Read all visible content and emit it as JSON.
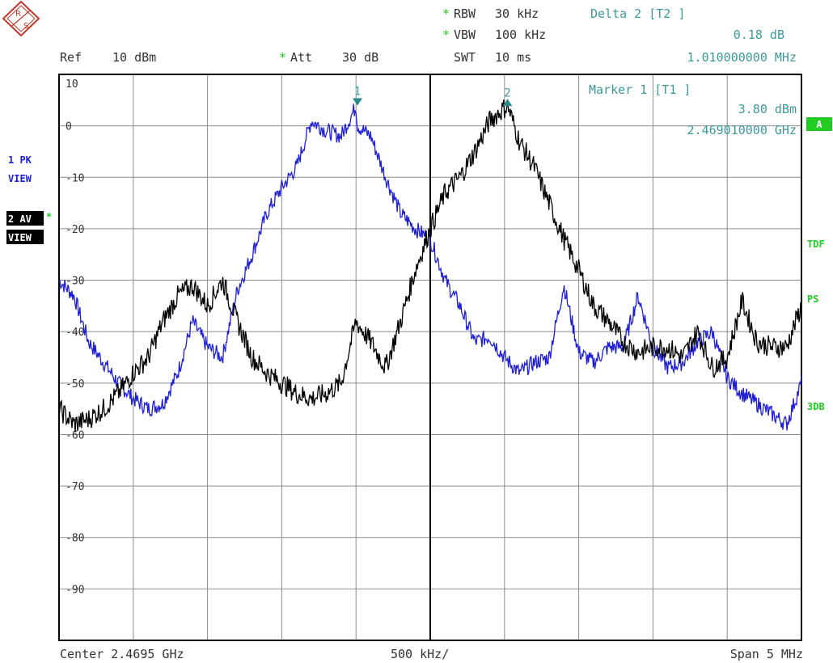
{
  "header": {
    "rbw": {
      "star": "*",
      "label": "RBW",
      "value": "30 kHz"
    },
    "vbw": {
      "star": "*",
      "label": "VBW",
      "value": "100 kHz"
    },
    "ref": {
      "label": "Ref",
      "value": "10 dBm"
    },
    "att": {
      "star": "*",
      "label": "Att",
      "value": "30 dB"
    },
    "swt": {
      "label": "SWT",
      "value": "10 ms"
    },
    "delta": {
      "title": "Delta 2 [T2 ]",
      "level": "0.18 dB",
      "freq": "1.010000000 MHz"
    },
    "marker": {
      "title": "Marker 1 [T1 ]",
      "level": "3.80 dBm",
      "freq": "2.469010000 GHz"
    }
  },
  "logo": {
    "text": "R&S"
  },
  "left_labels": {
    "trace1_line1": "1 PK",
    "trace1_line2": "VIEW",
    "trace2_line1": "2 AV",
    "trace2_star": "*",
    "trace2_line2": "VIEW"
  },
  "right_labels": {
    "a": "A",
    "tdf": "TDF",
    "ps": "PS",
    "db3": "3DB"
  },
  "footer": {
    "center": "Center 2.4695 GHz",
    "div": "500 kHz/",
    "span": "Span 5 MHz"
  },
  "colors": {
    "trace1": "#1f1fd6",
    "trace2": "#000000",
    "marker": "#2a8a8a",
    "status_green": "#22cc22",
    "grid": "#8c8c8c",
    "text": "#333333",
    "teal_text": "#3d9a9a"
  },
  "chart_data": {
    "type": "line",
    "title": "",
    "xlabel": "",
    "ylabel": "",
    "x_unit": "GHz",
    "x_center": 2.4695,
    "x_span_mhz": 5,
    "xlim": [
      2.467,
      2.472
    ],
    "ylim": [
      -100,
      10
    ],
    "ytick_labels": [
      "10",
      "0",
      "-10",
      "-20",
      "-30",
      "-40",
      "-50",
      "-60",
      "-70",
      "-80",
      "-90"
    ],
    "yticks": [
      10,
      0,
      -10,
      -20,
      -30,
      -40,
      -50,
      -60,
      -70,
      -80,
      -90
    ],
    "grid": true,
    "divider_x": 2.4695,
    "markers": [
      {
        "label": "1",
        "x": 2.46901,
        "y": 3.8,
        "trace": 1,
        "symbol": "down-triangle"
      },
      {
        "label": "2",
        "x": 2.47002,
        "y": 3.98,
        "trace": 2,
        "symbol": "up-triangle"
      }
    ],
    "series": [
      {
        "trace": 1,
        "x": [
          2.467,
          2.4671,
          2.4672,
          2.4673,
          2.4674,
          2.4675,
          2.4676,
          2.4677,
          2.4678,
          2.4679,
          2.468,
          2.4681,
          2.4682,
          2.4683,
          2.4684,
          2.4685,
          2.4686,
          2.4687,
          2.4688,
          2.4689,
          2.469,
          2.46901,
          2.4691,
          2.4692,
          2.4693,
          2.4694,
          2.4695,
          2.4696,
          2.4697,
          2.4698,
          2.4699,
          2.47,
          2.4701,
          2.4702,
          2.4703,
          2.4704,
          2.4705,
          2.4706,
          2.4707,
          2.4708,
          2.4709,
          2.471,
          2.4711,
          2.4712,
          2.4713,
          2.4714,
          2.4715,
          2.4716,
          2.4717,
          2.4718,
          2.4719,
          2.472
        ],
        "y": [
          -30,
          -33,
          -42,
          -46,
          -50,
          -53,
          -55,
          -54,
          -48,
          -38,
          -43,
          -45,
          -32,
          -25,
          -17,
          -12,
          -8,
          1,
          -1,
          -2,
          3.8,
          0,
          -2,
          -10,
          -17,
          -20,
          -22,
          -30,
          -35,
          -42,
          -41,
          -45,
          -48,
          -46,
          -45,
          -31,
          -44,
          -46,
          -43,
          -43,
          -33,
          -43,
          -47,
          -46,
          -42,
          -40,
          -49,
          -52,
          -54,
          -56,
          -58,
          -50
        ]
      },
      {
        "trace": 2,
        "x": [
          2.467,
          2.4671,
          2.4672,
          2.4673,
          2.4674,
          2.4675,
          2.4676,
          2.4677,
          2.4678,
          2.4679,
          2.468,
          2.4681,
          2.4682,
          2.4683,
          2.4684,
          2.4685,
          2.4686,
          2.4687,
          2.4688,
          2.4689,
          2.469,
          2.4691,
          2.4692,
          2.4693,
          2.4694,
          2.4695,
          2.4696,
          2.4697,
          2.4698,
          2.4699,
          2.47002,
          2.4701,
          2.4702,
          2.4703,
          2.4704,
          2.4705,
          2.4706,
          2.4707,
          2.4708,
          2.4709,
          2.471,
          2.4711,
          2.4712,
          2.4713,
          2.4714,
          2.4715,
          2.4716,
          2.4717,
          2.4718,
          2.4719,
          2.472
        ],
        "y": [
          -55,
          -58,
          -57,
          -55,
          -52,
          -48,
          -45,
          -38,
          -33,
          -31,
          -35,
          -30,
          -38,
          -45,
          -48,
          -50,
          -52,
          -53,
          -52,
          -50,
          -38,
          -42,
          -47,
          -38,
          -28,
          -20,
          -13,
          -10,
          -5,
          1,
          3.98,
          -3,
          -8,
          -15,
          -22,
          -28,
          -35,
          -38,
          -42,
          -44,
          -43,
          -43,
          -45,
          -40,
          -47,
          -45,
          -34,
          -42,
          -43,
          -43,
          -35
        ]
      }
    ]
  }
}
